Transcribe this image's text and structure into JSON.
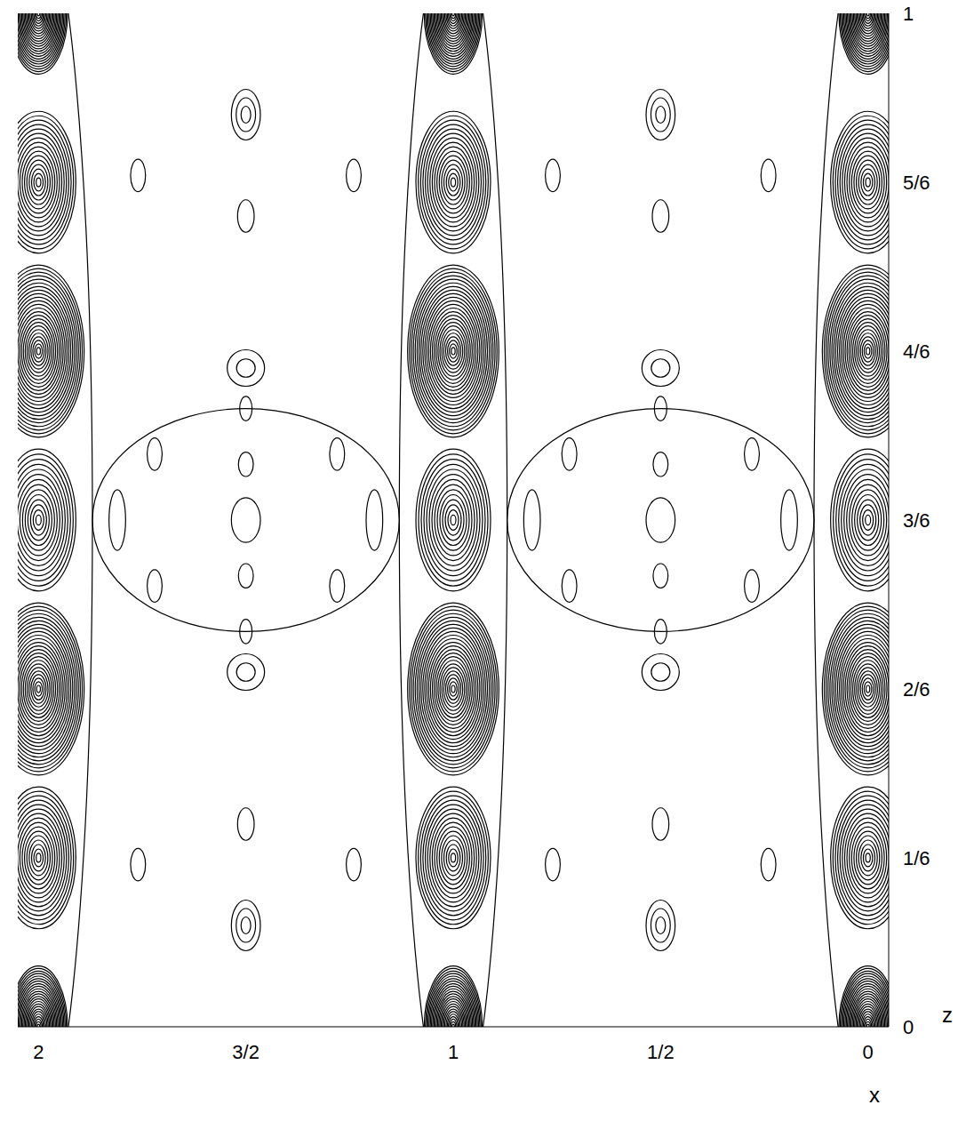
{
  "chart_data": {
    "type": "contour",
    "x_label": "x",
    "y_label": "z",
    "xlim": [
      -0.05,
      2.05
    ],
    "ylim": [
      0,
      1
    ],
    "x_reversed": true,
    "xticks": [
      0,
      {
        "value": 0.5,
        "label": "1/2"
      },
      1,
      {
        "value": 1.5,
        "label": "3/2"
      },
      2
    ],
    "yticks": [
      0,
      {
        "value": 0.1667,
        "label": "1/6"
      },
      {
        "value": 0.3333,
        "label": "2/6"
      },
      {
        "value": 0.5,
        "label": "3/6"
      },
      {
        "value": 0.6667,
        "label": "4/6"
      },
      {
        "value": 0.8333,
        "label": "5/6"
      },
      1
    ],
    "color": "#000000",
    "peaks": [
      {
        "x": 0,
        "z": 0,
        "rx": 0.07,
        "rz": 0.06,
        "levels": 24
      },
      {
        "x": 0,
        "z": 0.1667,
        "rx": 0.09,
        "rz": 0.07,
        "levels": 16
      },
      {
        "x": 0,
        "z": 0.3333,
        "rx": 0.11,
        "rz": 0.085,
        "levels": 24
      },
      {
        "x": 0,
        "z": 0.5,
        "rx": 0.09,
        "rz": 0.07,
        "levels": 14
      },
      {
        "x": 0,
        "z": 0.6667,
        "rx": 0.11,
        "rz": 0.085,
        "levels": 24
      },
      {
        "x": 0,
        "z": 0.8333,
        "rx": 0.09,
        "rz": 0.07,
        "levels": 16
      },
      {
        "x": 0,
        "z": 1,
        "rx": 0.07,
        "rz": 0.06,
        "levels": 24
      },
      {
        "x": 0,
        "z": 0.5,
        "rx": 0.13,
        "rz": 0.6,
        "levels": 1
      },
      {
        "x": 1,
        "z": 0,
        "rx": 0.07,
        "rz": 0.06,
        "levels": 24
      },
      {
        "x": 1,
        "z": 0.1667,
        "rx": 0.09,
        "rz": 0.07,
        "levels": 16
      },
      {
        "x": 1,
        "z": 0.3333,
        "rx": 0.11,
        "rz": 0.085,
        "levels": 24
      },
      {
        "x": 1,
        "z": 0.5,
        "rx": 0.09,
        "rz": 0.07,
        "levels": 14
      },
      {
        "x": 1,
        "z": 0.6667,
        "rx": 0.11,
        "rz": 0.085,
        "levels": 24
      },
      {
        "x": 1,
        "z": 0.8333,
        "rx": 0.09,
        "rz": 0.07,
        "levels": 16
      },
      {
        "x": 1,
        "z": 1,
        "rx": 0.07,
        "rz": 0.06,
        "levels": 24
      },
      {
        "x": 1,
        "z": 0.5,
        "rx": 0.13,
        "rz": 0.6,
        "levels": 1
      },
      {
        "x": 2,
        "z": 0,
        "rx": 0.07,
        "rz": 0.06,
        "levels": 24
      },
      {
        "x": 2,
        "z": 0.1667,
        "rx": 0.09,
        "rz": 0.07,
        "levels": 16
      },
      {
        "x": 2,
        "z": 0.3333,
        "rx": 0.11,
        "rz": 0.085,
        "levels": 24
      },
      {
        "x": 2,
        "z": 0.5,
        "rx": 0.09,
        "rz": 0.07,
        "levels": 14
      },
      {
        "x": 2,
        "z": 0.6667,
        "rx": 0.11,
        "rz": 0.085,
        "levels": 24
      },
      {
        "x": 2,
        "z": 0.8333,
        "rx": 0.09,
        "rz": 0.07,
        "levels": 16
      },
      {
        "x": 2,
        "z": 1,
        "rx": 0.07,
        "rz": 0.06,
        "levels": 24
      },
      {
        "x": 2,
        "z": 0.5,
        "rx": 0.13,
        "rz": 0.6,
        "levels": 1
      },
      {
        "x": 0.5,
        "z": 0.1,
        "rx": 0.035,
        "rz": 0.025,
        "levels": 3
      },
      {
        "x": 0.5,
        "z": 0.9,
        "rx": 0.035,
        "rz": 0.025,
        "levels": 3
      },
      {
        "x": 0.5,
        "z": 0.2,
        "rx": 0.02,
        "rz": 0.016,
        "levels": 1
      },
      {
        "x": 0.5,
        "z": 0.8,
        "rx": 0.02,
        "rz": 0.016,
        "levels": 1
      },
      {
        "x": 0.5,
        "z": 0.35,
        "rx": 0.045,
        "rz": 0.018,
        "levels": 2
      },
      {
        "x": 0.5,
        "z": 0.65,
        "rx": 0.045,
        "rz": 0.018,
        "levels": 2
      },
      {
        "x": 0.5,
        "z": 0.39,
        "rx": 0.015,
        "rz": 0.012,
        "levels": 1
      },
      {
        "x": 0.5,
        "z": 0.61,
        "rx": 0.015,
        "rz": 0.012,
        "levels": 1
      },
      {
        "x": 0.5,
        "z": 0.5,
        "rx": 0.035,
        "rz": 0.022,
        "levels": 1
      },
      {
        "x": 0.5,
        "z": 0.555,
        "rx": 0.018,
        "rz": 0.012,
        "levels": 1
      },
      {
        "x": 0.5,
        "z": 0.445,
        "rx": 0.018,
        "rz": 0.012,
        "levels": 1
      },
      {
        "x": 0.28,
        "z": 0.565,
        "rx": 0.018,
        "rz": 0.016,
        "levels": 1
      },
      {
        "x": 0.72,
        "z": 0.565,
        "rx": 0.018,
        "rz": 0.016,
        "levels": 1
      },
      {
        "x": 0.28,
        "z": 0.435,
        "rx": 0.018,
        "rz": 0.016,
        "levels": 1
      },
      {
        "x": 0.72,
        "z": 0.435,
        "rx": 0.018,
        "rz": 0.016,
        "levels": 1
      },
      {
        "x": 0.19,
        "z": 0.5,
        "rx": 0.02,
        "rz": 0.03,
        "levels": 1
      },
      {
        "x": 0.81,
        "z": 0.5,
        "rx": 0.02,
        "rz": 0.03,
        "levels": 1
      },
      {
        "x": 0.24,
        "z": 0.16,
        "rx": 0.018,
        "rz": 0.016,
        "levels": 1
      },
      {
        "x": 0.76,
        "z": 0.16,
        "rx": 0.018,
        "rz": 0.016,
        "levels": 1
      },
      {
        "x": 0.24,
        "z": 0.84,
        "rx": 0.018,
        "rz": 0.016,
        "levels": 1
      },
      {
        "x": 0.76,
        "z": 0.84,
        "rx": 0.018,
        "rz": 0.016,
        "levels": 1
      },
      {
        "x": 0.5,
        "z": 0.5,
        "rx": 0.37,
        "rz": 0.11,
        "levels": 1
      },
      {
        "x": 1.5,
        "z": 0.1,
        "rx": 0.035,
        "rz": 0.025,
        "levels": 3
      },
      {
        "x": 1.5,
        "z": 0.9,
        "rx": 0.035,
        "rz": 0.025,
        "levels": 3
      },
      {
        "x": 1.5,
        "z": 0.2,
        "rx": 0.02,
        "rz": 0.016,
        "levels": 1
      },
      {
        "x": 1.5,
        "z": 0.8,
        "rx": 0.02,
        "rz": 0.016,
        "levels": 1
      },
      {
        "x": 1.5,
        "z": 0.35,
        "rx": 0.045,
        "rz": 0.018,
        "levels": 2
      },
      {
        "x": 1.5,
        "z": 0.65,
        "rx": 0.045,
        "rz": 0.018,
        "levels": 2
      },
      {
        "x": 1.5,
        "z": 0.39,
        "rx": 0.015,
        "rz": 0.012,
        "levels": 1
      },
      {
        "x": 1.5,
        "z": 0.61,
        "rx": 0.015,
        "rz": 0.012,
        "levels": 1
      },
      {
        "x": 1.5,
        "z": 0.5,
        "rx": 0.035,
        "rz": 0.022,
        "levels": 1
      },
      {
        "x": 1.5,
        "z": 0.555,
        "rx": 0.018,
        "rz": 0.012,
        "levels": 1
      },
      {
        "x": 1.5,
        "z": 0.445,
        "rx": 0.018,
        "rz": 0.012,
        "levels": 1
      },
      {
        "x": 1.28,
        "z": 0.565,
        "rx": 0.018,
        "rz": 0.016,
        "levels": 1
      },
      {
        "x": 1.72,
        "z": 0.565,
        "rx": 0.018,
        "rz": 0.016,
        "levels": 1
      },
      {
        "x": 1.28,
        "z": 0.435,
        "rx": 0.018,
        "rz": 0.016,
        "levels": 1
      },
      {
        "x": 1.72,
        "z": 0.435,
        "rx": 0.018,
        "rz": 0.016,
        "levels": 1
      },
      {
        "x": 1.19,
        "z": 0.5,
        "rx": 0.02,
        "rz": 0.03,
        "levels": 1
      },
      {
        "x": 1.81,
        "z": 0.5,
        "rx": 0.02,
        "rz": 0.03,
        "levels": 1
      },
      {
        "x": 1.24,
        "z": 0.16,
        "rx": 0.018,
        "rz": 0.016,
        "levels": 1
      },
      {
        "x": 1.76,
        "z": 0.16,
        "rx": 0.018,
        "rz": 0.016,
        "levels": 1
      },
      {
        "x": 1.24,
        "z": 0.84,
        "rx": 0.018,
        "rz": 0.016,
        "levels": 1
      },
      {
        "x": 1.76,
        "z": 0.84,
        "rx": 0.018,
        "rz": 0.016,
        "levels": 1
      },
      {
        "x": 1.5,
        "z": 0.5,
        "rx": 0.37,
        "rz": 0.11,
        "levels": 1
      }
    ]
  }
}
